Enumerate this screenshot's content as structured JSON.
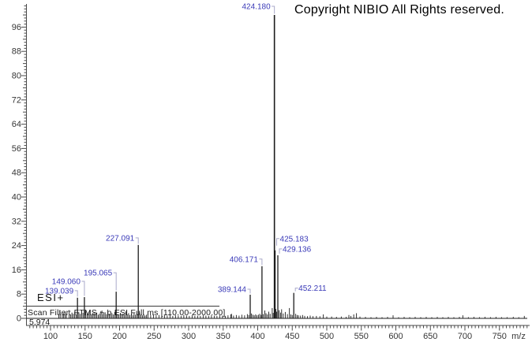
{
  "header": {
    "copyright": "Copyright NIBIO All Rights reserved."
  },
  "annotations": {
    "ionization_mode": "ESI+",
    "scan_filter": "Scan Filter: FTMS + p ESI Full ms [110.00-2000.00]",
    "retention_time": "5.974"
  },
  "colors": {
    "peak": "#1c1c1c",
    "axis": "#4a4a4a",
    "tick_label": "#363636",
    "peak_label": "#3a3ab8",
    "bracket": "#a9a9c9",
    "background": "#ffffff"
  },
  "chart_data": {
    "type": "bar",
    "style": "mass-spectrum-stick",
    "title": "",
    "xlabel": "m/z",
    "ylabel": "",
    "grid": false,
    "x_axis": {
      "min": 65,
      "max": 790,
      "major_step": 50,
      "minor_step": 5,
      "labels": [
        100,
        150,
        200,
        250,
        300,
        350,
        400,
        450,
        500,
        550,
        600,
        650,
        700,
        750
      ]
    },
    "y_axis": {
      "min": 0,
      "max": 104,
      "major_step": 8,
      "minor_step": 1,
      "labels": [
        0,
        8,
        16,
        24,
        32,
        40,
        48,
        56,
        64,
        72,
        80,
        88,
        96
      ]
    },
    "labeled_peaks": [
      {
        "mz": 139.039,
        "intensity": 6.8,
        "label": "139.039",
        "side": "left",
        "label_dy": -9
      },
      {
        "mz": 149.06,
        "intensity": 7.0,
        "label": "149.060",
        "side": "left",
        "label_dy": -20
      },
      {
        "mz": 195.065,
        "intensity": 8.8,
        "label": "195.065",
        "side": "left",
        "label_dy": -24
      },
      {
        "mz": 227.091,
        "intensity": 24.2,
        "label": "227.091",
        "side": "left",
        "label_dy": -9
      },
      {
        "mz": 389.144,
        "intensity": 7.8,
        "label": "389.144",
        "side": "left",
        "label_dy": -7
      },
      {
        "mz": 406.171,
        "intensity": 17.2,
        "label": "406.171",
        "side": "left",
        "label_dy": -9
      },
      {
        "mz": 424.18,
        "intensity": 100.0,
        "label": "424.180",
        "side": "left",
        "label_dy": -11
      },
      {
        "mz": 425.183,
        "intensity": 22.4,
        "label": "425.183",
        "side": "right",
        "label_dy": -15
      },
      {
        "mz": 429.136,
        "intensity": 20.8,
        "label": "429.136",
        "side": "right",
        "label_dy": -8
      },
      {
        "mz": 452.211,
        "intensity": 8.4,
        "label": "452.211",
        "side": "right",
        "label_dy": -6
      }
    ],
    "noise_peaks": [
      [
        112,
        1.4
      ],
      [
        114,
        2.1
      ],
      [
        117,
        1.2
      ],
      [
        119,
        1.7
      ],
      [
        121,
        2.3
      ],
      [
        123,
        1.5
      ],
      [
        127,
        2.7
      ],
      [
        129,
        1.3
      ],
      [
        131,
        1.9
      ],
      [
        133,
        1.5
      ],
      [
        135,
        2.2
      ],
      [
        137,
        1.3
      ],
      [
        141,
        2.0
      ],
      [
        143,
        1.5
      ],
      [
        145,
        1.1
      ],
      [
        147,
        1.8
      ],
      [
        151,
        2.3
      ],
      [
        153,
        1.4
      ],
      [
        155,
        1.9
      ],
      [
        157,
        2.6
      ],
      [
        159,
        1.3
      ],
      [
        161,
        1.7
      ],
      [
        163,
        2.1
      ],
      [
        165,
        1.4
      ],
      [
        167,
        1.9
      ],
      [
        169,
        1.2
      ],
      [
        171,
        1.6
      ],
      [
        173,
        2.4
      ],
      [
        175,
        1.3
      ],
      [
        177,
        1.8
      ],
      [
        179,
        2.0
      ],
      [
        181,
        1.4
      ],
      [
        183,
        2.9
      ],
      [
        185,
        1.5
      ],
      [
        187,
        1.2
      ],
      [
        189,
        1.7
      ],
      [
        191,
        1.3
      ],
      [
        193,
        2.1
      ],
      [
        197,
        1.4
      ],
      [
        199,
        1.1
      ],
      [
        201,
        1.8
      ],
      [
        203,
        1.2
      ],
      [
        205,
        1.6
      ],
      [
        207,
        1.1
      ],
      [
        209,
        2.3
      ],
      [
        211,
        1.3
      ],
      [
        213,
        1.7
      ],
      [
        215,
        1.1
      ],
      [
        217,
        1.4
      ],
      [
        219,
        1.0
      ],
      [
        221,
        1.8
      ],
      [
        223,
        1.2
      ],
      [
        225,
        1.5
      ],
      [
        229,
        1.9
      ],
      [
        231,
        1.3
      ],
      [
        233,
        1.0
      ],
      [
        235,
        1.4
      ],
      [
        237,
        0.9
      ],
      [
        239,
        1.2
      ],
      [
        241,
        1.6
      ],
      [
        245,
        1.0
      ],
      [
        249,
        1.3
      ],
      [
        253,
        0.9
      ],
      [
        257,
        1.1
      ],
      [
        261,
        0.8
      ],
      [
        265,
        1.0
      ],
      [
        269,
        0.9
      ],
      [
        273,
        1.2
      ],
      [
        277,
        0.8
      ],
      [
        281,
        1.0
      ],
      [
        285,
        0.9
      ],
      [
        289,
        0.8
      ],
      [
        293,
        1.1
      ],
      [
        297,
        0.9
      ],
      [
        301,
        0.8
      ],
      [
        305,
        1.0
      ],
      [
        309,
        0.8
      ],
      [
        313,
        0.9
      ],
      [
        317,
        0.8
      ],
      [
        321,
        1.0
      ],
      [
        325,
        0.9
      ],
      [
        329,
        0.8
      ],
      [
        333,
        1.0
      ],
      [
        337,
        0.9
      ],
      [
        341,
        0.8
      ],
      [
        345,
        1.0
      ],
      [
        349,
        0.9
      ],
      [
        353,
        0.8
      ],
      [
        357,
        1.0
      ],
      [
        361,
        1.3
      ],
      [
        362,
        1.5
      ],
      [
        365,
        0.9
      ],
      [
        369,
        1.1
      ],
      [
        373,
        0.9
      ],
      [
        377,
        1.2
      ],
      [
        381,
        1.0
      ],
      [
        385,
        1.4
      ],
      [
        387,
        1.1
      ],
      [
        391,
        1.6
      ],
      [
        393,
        1.2
      ],
      [
        395,
        1.0
      ],
      [
        397,
        1.3
      ],
      [
        399,
        1.0
      ],
      [
        401,
        1.2
      ],
      [
        403,
        1.5
      ],
      [
        405,
        1.1
      ],
      [
        408,
        1.4
      ],
      [
        410.2,
        2.6
      ],
      [
        412,
        1.7
      ],
      [
        414,
        1.3
      ],
      [
        416,
        2.2
      ],
      [
        418,
        1.5
      ],
      [
        421,
        3.4
      ],
      [
        422.5,
        1.8
      ],
      [
        426.2,
        3.1
      ],
      [
        427.5,
        2.2
      ],
      [
        431,
        2.7
      ],
      [
        433,
        1.9
      ],
      [
        434.6,
        3.0
      ],
      [
        437,
        1.6
      ],
      [
        439.9,
        2.1
      ],
      [
        443,
        1.4
      ],
      [
        445.9,
        3.4
      ],
      [
        448,
        1.3
      ],
      [
        450,
        1.1
      ],
      [
        455,
        1.5
      ],
      [
        457,
        1.1
      ],
      [
        459,
        1.0
      ],
      [
        462,
        0.9
      ],
      [
        465,
        1.1
      ],
      [
        468,
        0.8
      ],
      [
        472,
        0.7
      ],
      [
        476,
        0.9
      ],
      [
        480,
        0.7
      ],
      [
        485,
        0.8
      ],
      [
        490,
        0.7
      ],
      [
        495,
        1.3
      ],
      [
        500,
        0.6
      ],
      [
        507,
        0.6
      ],
      [
        514,
        0.5
      ],
      [
        521,
        0.6
      ],
      [
        528,
        0.5
      ],
      [
        532,
        1.1
      ],
      [
        535,
        0.8
      ],
      [
        539,
        1.3
      ],
      [
        543,
        1.7
      ],
      [
        548,
        0.6
      ],
      [
        556,
        0.5
      ],
      [
        564,
        0.4
      ],
      [
        572,
        0.5
      ],
      [
        580,
        0.4
      ],
      [
        588,
        0.5
      ],
      [
        596,
        1.0
      ],
      [
        604,
        0.4
      ],
      [
        612,
        0.5
      ],
      [
        620,
        0.4
      ],
      [
        628,
        0.5
      ],
      [
        636,
        0.4
      ],
      [
        644,
        0.5
      ],
      [
        652,
        0.4
      ],
      [
        660,
        0.5
      ],
      [
        668,
        0.4
      ],
      [
        676,
        0.5
      ],
      [
        684,
        0.4
      ],
      [
        692,
        0.5
      ],
      [
        697,
        1.0
      ],
      [
        705,
        0.4
      ],
      [
        713,
        0.5
      ],
      [
        721,
        0.4
      ],
      [
        729,
        0.5
      ],
      [
        737,
        0.4
      ],
      [
        745,
        0.5
      ],
      [
        753,
        0.4
      ],
      [
        761,
        0.4
      ],
      [
        770,
        0.5
      ],
      [
        778,
        0.4
      ],
      [
        786,
        0.8
      ]
    ]
  }
}
